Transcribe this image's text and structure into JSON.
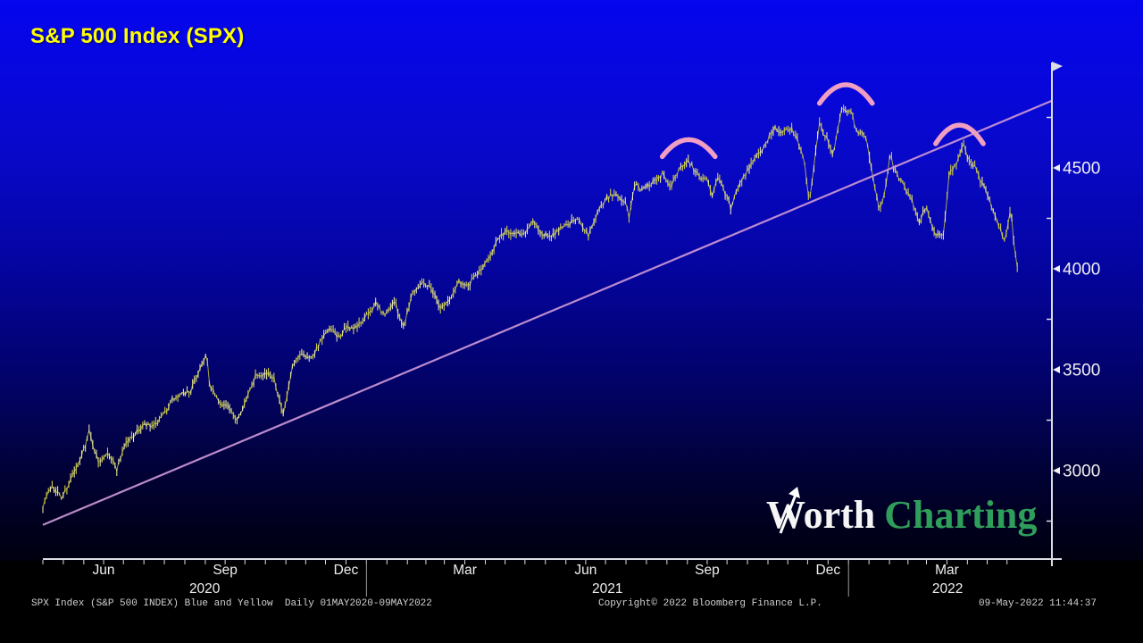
{
  "header": {
    "title": "S&P 500 Index (SPX)"
  },
  "branding": {
    "worth": "Worth",
    "charting": "Charting"
  },
  "footer": {
    "left": "SPX Index (S&P 500 INDEX) Blue and Yellow  Daily 01MAY2020-09MAY2022",
    "center": "Copyright© 2022 Bloomberg Finance L.P.",
    "right": "09-May-2022 11:44:37"
  },
  "colors": {
    "background_top": "#0505ee",
    "background_bottom": "#000010",
    "title": "#ffff00",
    "axis": "#dcdce4",
    "tick_label": "#f0f0f0",
    "price_main": "#cccc44",
    "price_light": "#e6e68e",
    "price_pale": "#f2f2c6",
    "trendline": "#c793d2",
    "arc": "#f09ec2",
    "logo_green": "#2f9e5a",
    "footer_text": "#d2d2d2"
  },
  "chart_data": {
    "type": "line",
    "title": "S&P 500 Index (SPX)",
    "subtitle_source": "Bloomberg daily HLC bars, blue & yellow theme",
    "x_start_date": "2020-05-01",
    "x_end_date": "2022-05-09",
    "x_span_days": 738,
    "ylim": [
      2560,
      5020
    ],
    "grid": false,
    "legend": "none",
    "y_ticks_labeled": [
      3000,
      3500,
      4000,
      4500
    ],
    "y_ticks_minor": [
      2750,
      3250,
      3750,
      4250,
      4750
    ],
    "x_month_labels": [
      {
        "label": "Jun",
        "day": 46
      },
      {
        "label": "Sep",
        "day": 138
      },
      {
        "label": "Dec",
        "day": 229.5
      },
      {
        "label": "Mar",
        "day": 319.5
      },
      {
        "label": "Jun",
        "day": 411
      },
      {
        "label": "Sep",
        "day": 503
      },
      {
        "label": "Dec",
        "day": 594.5
      },
      {
        "label": "Mar",
        "day": 684.5
      }
    ],
    "x_year_labels": [
      {
        "label": "2020",
        "day": 122.5
      },
      {
        "label": "2021",
        "day": 427.5
      },
      {
        "label": "2022",
        "day": 685
      }
    ],
    "month_tick_days": [
      0,
      31,
      61,
      92,
      123,
      153,
      184,
      214,
      245,
      276,
      304,
      335,
      365,
      396,
      426,
      457,
      488,
      518,
      549,
      579,
      610,
      641,
      669,
      700,
      730
    ],
    "year_separator_days": [
      245,
      610
    ],
    "series": [
      {
        "name": "SPX Index (S&P 500 INDEX)",
        "period": "Daily",
        "style": "hlc-bars",
        "color": "#cccc44",
        "points": [
          [
            0,
            2831
          ],
          [
            7,
            2930
          ],
          [
            14,
            2864
          ],
          [
            21,
            2955
          ],
          [
            28,
            3044
          ],
          [
            35,
            3194
          ],
          [
            42,
            3041
          ],
          [
            49,
            3098
          ],
          [
            56,
            3009
          ],
          [
            62,
            3130
          ],
          [
            70,
            3185
          ],
          [
            77,
            3225
          ],
          [
            84,
            3216
          ],
          [
            91,
            3271
          ],
          [
            98,
            3351
          ],
          [
            105,
            3373
          ],
          [
            112,
            3397
          ],
          [
            119,
            3508
          ],
          [
            124,
            3581
          ],
          [
            126,
            3427
          ],
          [
            133,
            3341
          ],
          [
            140,
            3319
          ],
          [
            146,
            3247
          ],
          [
            154,
            3348
          ],
          [
            161,
            3477
          ],
          [
            168,
            3484
          ],
          [
            175,
            3465
          ],
          [
            182,
            3270
          ],
          [
            189,
            3509
          ],
          [
            196,
            3585
          ],
          [
            203,
            3558
          ],
          [
            210,
            3638
          ],
          [
            217,
            3699
          ],
          [
            224,
            3663
          ],
          [
            231,
            3709
          ],
          [
            237,
            3703
          ],
          [
            244,
            3756
          ],
          [
            252,
            3825
          ],
          [
            259,
            3768
          ],
          [
            266,
            3841
          ],
          [
            273,
            3714
          ],
          [
            280,
            3887
          ],
          [
            287,
            3935
          ],
          [
            294,
            3907
          ],
          [
            301,
            3811
          ],
          [
            308,
            3842
          ],
          [
            315,
            3943
          ],
          [
            322,
            3913
          ],
          [
            329,
            3975
          ],
          [
            335,
            4020
          ],
          [
            343,
            4129
          ],
          [
            350,
            4185
          ],
          [
            357,
            4180
          ],
          [
            364,
            4181
          ],
          [
            371,
            4233
          ],
          [
            378,
            4174
          ],
          [
            385,
            4156
          ],
          [
            392,
            4204
          ],
          [
            399,
            4230
          ],
          [
            406,
            4247
          ],
          [
            413,
            4166
          ],
          [
            420,
            4281
          ],
          [
            427,
            4352
          ],
          [
            434,
            4369
          ],
          [
            441,
            4327
          ],
          [
            444,
            4258
          ],
          [
            448,
            4412
          ],
          [
            455,
            4395
          ],
          [
            462,
            4437
          ],
          [
            469,
            4468
          ],
          [
            475,
            4406
          ],
          [
            483,
            4509
          ],
          [
            489,
            4537
          ],
          [
            497,
            4459
          ],
          [
            504,
            4433
          ],
          [
            507,
            4358
          ],
          [
            511,
            4455
          ],
          [
            518,
            4357
          ],
          [
            521,
            4300
          ],
          [
            525,
            4391
          ],
          [
            532,
            4471
          ],
          [
            539,
            4545
          ],
          [
            546,
            4605
          ],
          [
            553,
            4698
          ],
          [
            560,
            4683
          ],
          [
            567,
            4698
          ],
          [
            574,
            4595
          ],
          [
            577,
            4520
          ],
          [
            580,
            4330
          ],
          [
            582,
            4400
          ],
          [
            585,
            4591
          ],
          [
            588,
            4712
          ],
          [
            595,
            4621
          ],
          [
            598,
            4568
          ],
          [
            605,
            4791
          ],
          [
            609,
            4766
          ],
          [
            612,
            4797
          ],
          [
            616,
            4677
          ],
          [
            623,
            4663
          ],
          [
            630,
            4398
          ],
          [
            633,
            4310
          ],
          [
            636,
            4326
          ],
          [
            642,
            4589
          ],
          [
            644,
            4501
          ],
          [
            651,
            4419
          ],
          [
            658,
            4349
          ],
          [
            663,
            4226
          ],
          [
            669,
            4306
          ],
          [
            676,
            4170
          ],
          [
            682,
            4173
          ],
          [
            686,
            4463
          ],
          [
            693,
            4543
          ],
          [
            697,
            4631
          ],
          [
            700,
            4546
          ],
          [
            707,
            4488
          ],
          [
            713,
            4393
          ],
          [
            721,
            4272
          ],
          [
            728,
            4131
          ],
          [
            733,
            4300
          ],
          [
            735,
            4147
          ],
          [
            738,
            3991
          ]
        ]
      }
    ],
    "trendline": {
      "name": "rising support trendline",
      "color": "#c793d2",
      "points": [
        [
          0,
          2731
        ],
        [
          764,
          4833
        ]
      ]
    },
    "annotations_arcs": [
      {
        "name": "top-1 Sep 2021",
        "center_day": 489,
        "half_width_days": 20,
        "apex_value": 4640,
        "base_value": 4556
      },
      {
        "name": "top-2 Jan 2022",
        "center_day": 608,
        "half_width_days": 20,
        "apex_value": 4912,
        "base_value": 4820
      },
      {
        "name": "top-3 Mar 2022",
        "center_day": 694,
        "half_width_days": 18,
        "apex_value": 4712,
        "base_value": 4620
      }
    ]
  }
}
